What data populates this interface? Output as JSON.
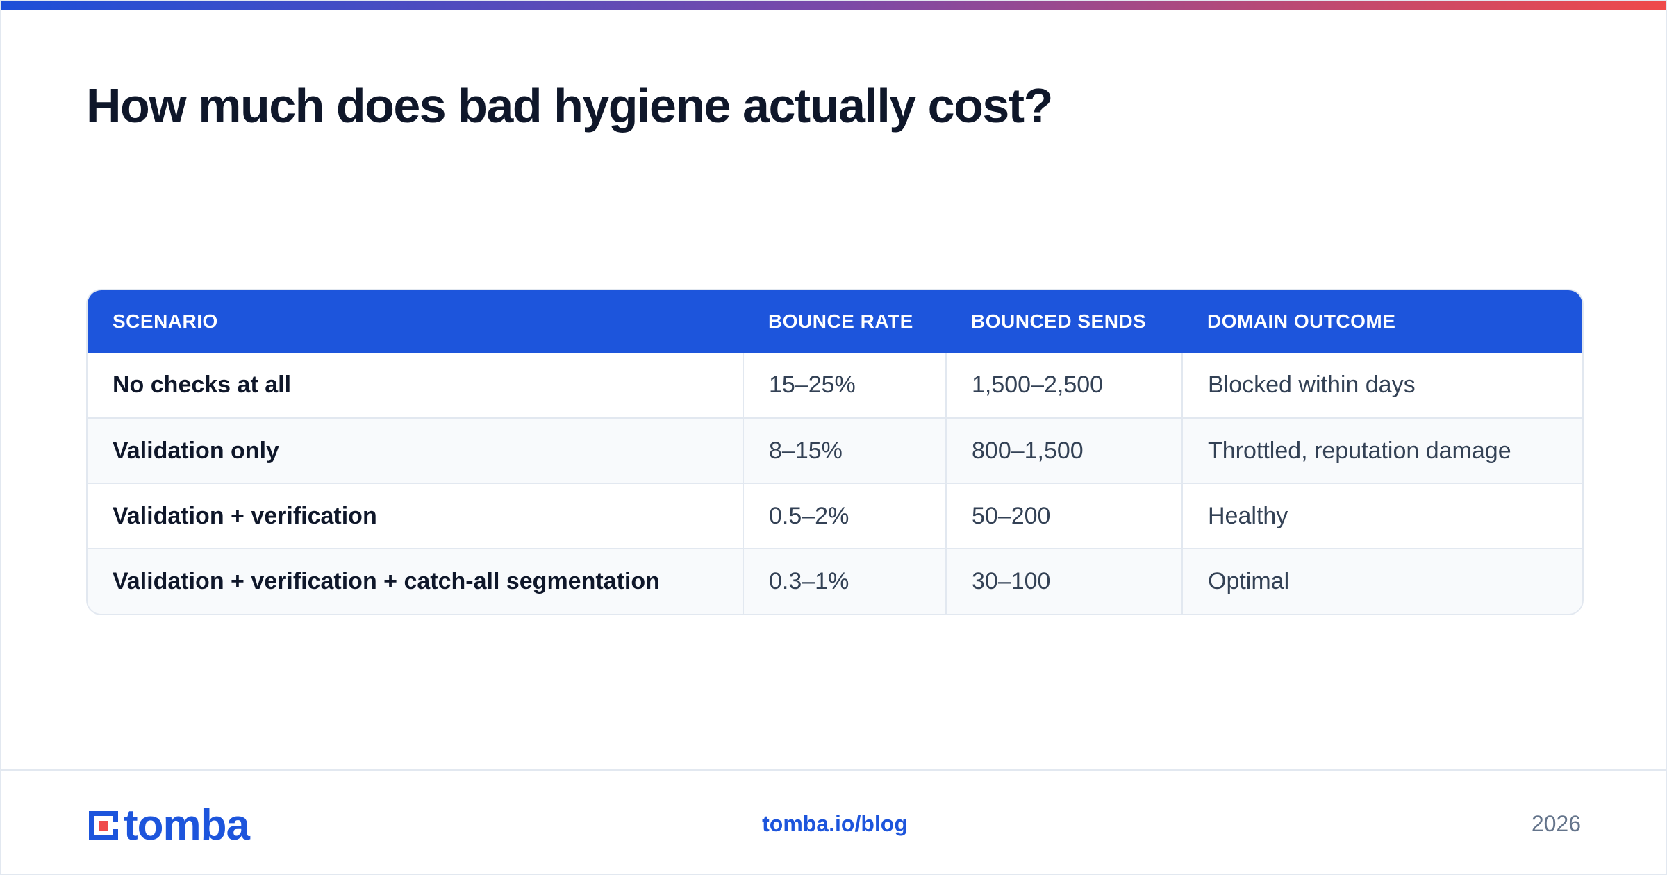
{
  "title": "How much does bad hygiene actually cost?",
  "table": {
    "headers": [
      "SCENARIO",
      "BOUNCE RATE",
      "BOUNCED SENDS",
      "DOMAIN OUTCOME"
    ],
    "rows": [
      [
        "No checks at all",
        "15–25%",
        "1,500–2,500",
        "Blocked within days"
      ],
      [
        "Validation only",
        "8–15%",
        "800–1,500",
        "Throttled, reputation damage"
      ],
      [
        "Validation + verification",
        "0.5–2%",
        "50–200",
        "Healthy"
      ],
      [
        "Validation + verification + catch-all segmentation",
        "0.3–1%",
        "30–100",
        "Optimal"
      ]
    ]
  },
  "footer": {
    "logo_text": "tomba",
    "link": "tomba.io/blog",
    "year": "2026"
  },
  "colors": {
    "brand_blue": "#1d55dc",
    "accent_red": "#ef4a4a",
    "header_bg": "#1d55dc"
  },
  "icons": {
    "logo": "tomba-logo-icon"
  }
}
